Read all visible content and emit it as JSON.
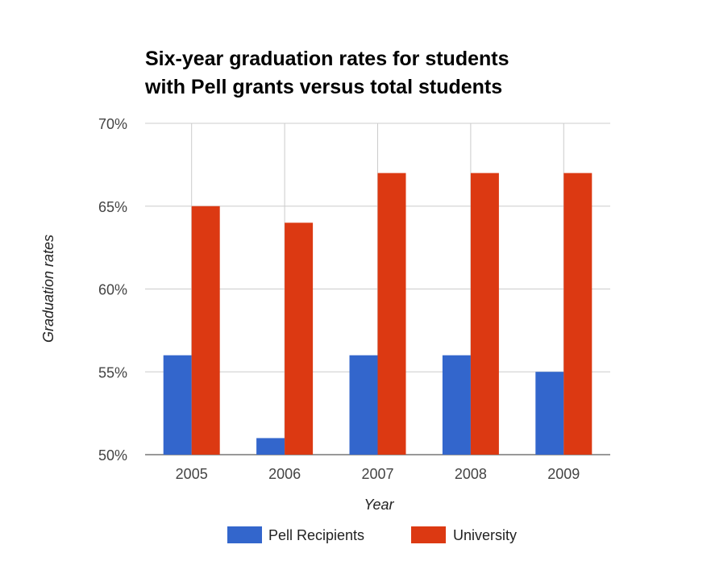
{
  "chart_data": {
    "type": "bar",
    "title_lines": [
      "Six-year graduation rates for students",
      "with Pell grants versus total students"
    ],
    "xlabel": "Year",
    "ylabel": "Graduation rates",
    "categories": [
      "2005",
      "2006",
      "2007",
      "2008",
      "2009"
    ],
    "series": [
      {
        "name": "Pell Recipients",
        "color": "#3366cc",
        "values": [
          56,
          51,
          56,
          56,
          55
        ]
      },
      {
        "name": "University",
        "color": "#dc3912",
        "values": [
          65,
          64,
          67,
          67,
          67
        ]
      }
    ],
    "ylim": [
      50,
      70
    ],
    "yticks": [
      50,
      55,
      60,
      65,
      70
    ],
    "ytick_labels": [
      "50%",
      "55%",
      "60%",
      "65%",
      "70%"
    ],
    "unit": "%",
    "grid": true,
    "legend": "bottom"
  }
}
